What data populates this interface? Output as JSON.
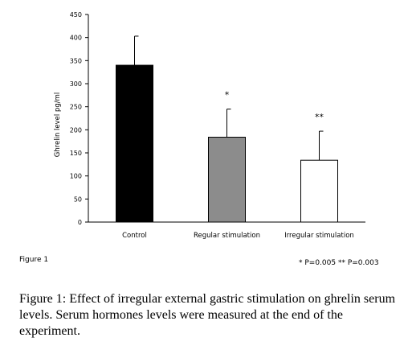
{
  "chart_data": {
    "type": "bar",
    "categories": [
      "Control",
      "Regular stimulation",
      "Irregular stimulation"
    ],
    "values": [
      340,
      184,
      134
    ],
    "error_bars": [
      63,
      61,
      63
    ],
    "significance": [
      "",
      "*",
      "**"
    ],
    "bar_colors": [
      "#000000",
      "#8c8c8c",
      "#ffffff"
    ],
    "title": "",
    "xlabel": "",
    "ylabel": "Ghrelin level pg/ml",
    "ylim": [
      0,
      450
    ],
    "yticks": [
      0,
      50,
      100,
      150,
      200,
      250,
      300,
      350,
      400,
      450
    ],
    "grid": false,
    "legend": "none"
  },
  "figure": {
    "panel_label": "Figure 1",
    "pvalue_note": "* P=0.005  ** P=0.003",
    "caption": "Figure 1: Effect of irregular external gastric stimulation on ghrelin serum levels. Serum hormones levels were measured at the end of the experiment."
  }
}
